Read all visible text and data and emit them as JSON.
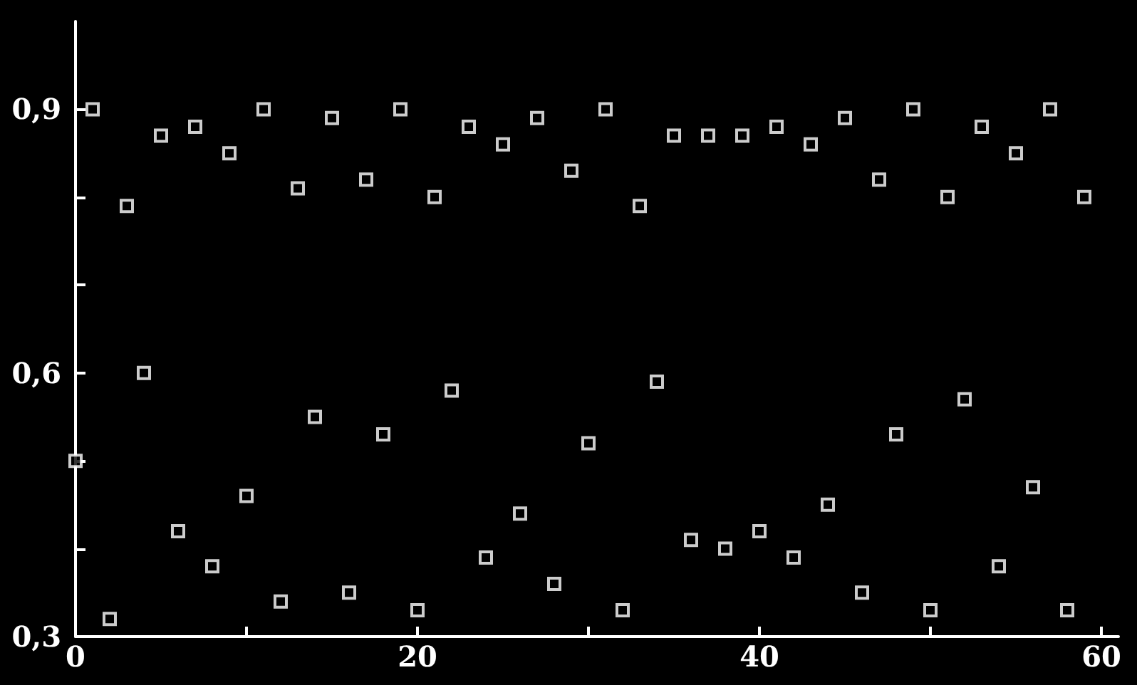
{
  "chart_data": {
    "type": "scatter",
    "marker": "square",
    "grid": false,
    "xlim": [
      0,
      61
    ],
    "xticks": [
      0,
      {
        "value": 10,
        "label": null
      },
      20,
      {
        "value": 30,
        "label": null
      },
      40,
      {
        "value": 50,
        "label": null
      },
      60
    ],
    "ylim": [
      0.3,
      1.0
    ],
    "yticks": [
      {
        "value": 0.3,
        "label": "0,3"
      },
      {
        "value": 0.4,
        "label": null
      },
      {
        "value": 0.5,
        "label": null
      },
      {
        "value": 0.6,
        "label": "0,6"
      },
      {
        "value": 0.7,
        "label": null
      },
      {
        "value": 0.8,
        "label": null
      },
      {
        "value": 0.9,
        "label": "0,9"
      }
    ],
    "series": [
      {
        "color": "#ffffff",
        "x": [
          0,
          1,
          2,
          3,
          4,
          5,
          6,
          7,
          8,
          9,
          10,
          11,
          12,
          13,
          14,
          15,
          16,
          17,
          18,
          19,
          20,
          21,
          22,
          23,
          24,
          25,
          26,
          27,
          28,
          29,
          30,
          31,
          32,
          33,
          34,
          35,
          36,
          37,
          38,
          39,
          40,
          41,
          42,
          43,
          44,
          45,
          46,
          47,
          48,
          49,
          50,
          51,
          52,
          53,
          54,
          55,
          56,
          57,
          58,
          59
        ],
        "values": [
          0.5,
          0.9,
          0.32,
          0.79,
          0.6,
          0.87,
          0.42,
          0.88,
          0.38,
          0.85,
          0.46,
          0.9,
          0.34,
          0.81,
          0.55,
          0.89,
          0.35,
          0.82,
          0.53,
          0.9,
          0.33,
          0.8,
          0.58,
          0.88,
          0.39,
          0.86,
          0.44,
          0.89,
          0.36,
          0.83,
          0.52,
          0.9,
          0.33,
          0.79,
          0.59,
          0.87,
          0.41,
          0.87,
          0.4,
          0.87,
          0.42,
          0.88,
          0.39,
          0.86,
          0.45,
          0.89,
          0.35,
          0.82,
          0.53,
          0.9,
          0.33,
          0.8,
          0.57,
          0.88,
          0.38,
          0.85,
          0.47,
          0.9,
          0.33,
          0.8
        ]
      }
    ]
  }
}
